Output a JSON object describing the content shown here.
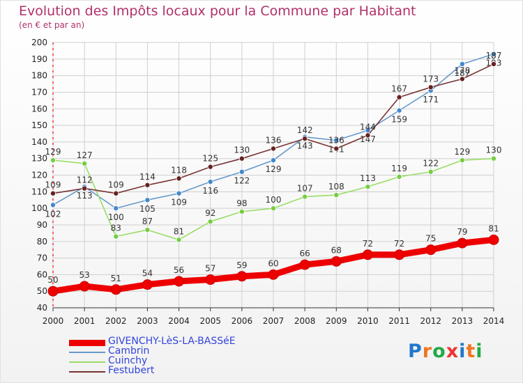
{
  "header": {
    "title": "Evolution des Impôts locaux pour la Commune par Habitant",
    "subtitle": "(en € et par an)"
  },
  "colors": {
    "title": "#b0306a",
    "grid": "#cfcfcf",
    "axis": "#333333",
    "legend_text": "#3344dd"
  },
  "chart_data": {
    "type": "line",
    "title": "Evolution des Impôts locaux pour la Commune par Habitant",
    "subtitle": "(en € et par an)",
    "xlabel": "",
    "ylabel": "",
    "ylim": [
      40,
      200
    ],
    "ytick_step": 10,
    "grid": true,
    "legend_position": "bottom-left",
    "x": [
      2000,
      2001,
      2002,
      2003,
      2004,
      2005,
      2006,
      2007,
      2008,
      2009,
      2010,
      2011,
      2012,
      2013,
      2014
    ],
    "series": [
      {
        "name": "GIVENCHY-LèS-LA-BASSéE",
        "color": "#ee0000",
        "marker_color": "#ee0000",
        "label_side": "above",
        "emphasis": "thick",
        "values": [
          50,
          53,
          51,
          54,
          56,
          57,
          59,
          60,
          66,
          68,
          72,
          72,
          75,
          79,
          81
        ],
        "labels": [
          "50",
          "53",
          "51",
          "54",
          "56",
          "57",
          "59",
          "60",
          "66",
          "68",
          "72",
          "72",
          "75",
          "79",
          "81"
        ]
      },
      {
        "name": "Cambrin",
        "color": "#6699cc",
        "marker_color": "#4488cc",
        "label_side": "below",
        "emphasis": "normal",
        "values": [
          102,
          113,
          100,
          105,
          109,
          116,
          122,
          129,
          143,
          141,
          147,
          159,
          171,
          187,
          193
        ],
        "labels": [
          "102",
          "113",
          "100",
          "105",
          "109",
          "116",
          "122",
          "129",
          "143",
          "141",
          "147",
          "159",
          "171",
          "187",
          "193"
        ]
      },
      {
        "name": "Cuinchy",
        "color": "#99dd66",
        "marker_color": "#77cc44",
        "label_side": "above",
        "emphasis": "normal",
        "values": [
          129,
          127,
          83,
          87,
          81,
          92,
          98,
          100,
          107,
          108,
          113,
          119,
          122,
          129,
          130
        ],
        "labels": [
          "129",
          "127",
          "83",
          "87",
          "81",
          "92",
          "98",
          "100",
          "107",
          "108",
          "113",
          "119",
          "122",
          "129",
          "130"
        ]
      },
      {
        "name": "Festubert",
        "color": "#773333",
        "marker_color": "#662222",
        "label_side": "above",
        "emphasis": "normal",
        "values": [
          109,
          112,
          109,
          114,
          118,
          125,
          130,
          136,
          142,
          136,
          144,
          167,
          173,
          178,
          187
        ],
        "labels": [
          "109",
          "112",
          "109",
          "114",
          "118",
          "125",
          "130",
          "136",
          "142",
          "136",
          "144",
          "167",
          "173",
          "178",
          "187"
        ]
      }
    ]
  },
  "logo": {
    "letters": [
      "P",
      "r",
      "o",
      "x",
      "i",
      "t",
      "i"
    ],
    "colors": [
      "#2277cc",
      "#ee7722",
      "#22aa44",
      "#ee3333",
      "#2277cc",
      "#ee7722",
      "#22aa44"
    ]
  }
}
